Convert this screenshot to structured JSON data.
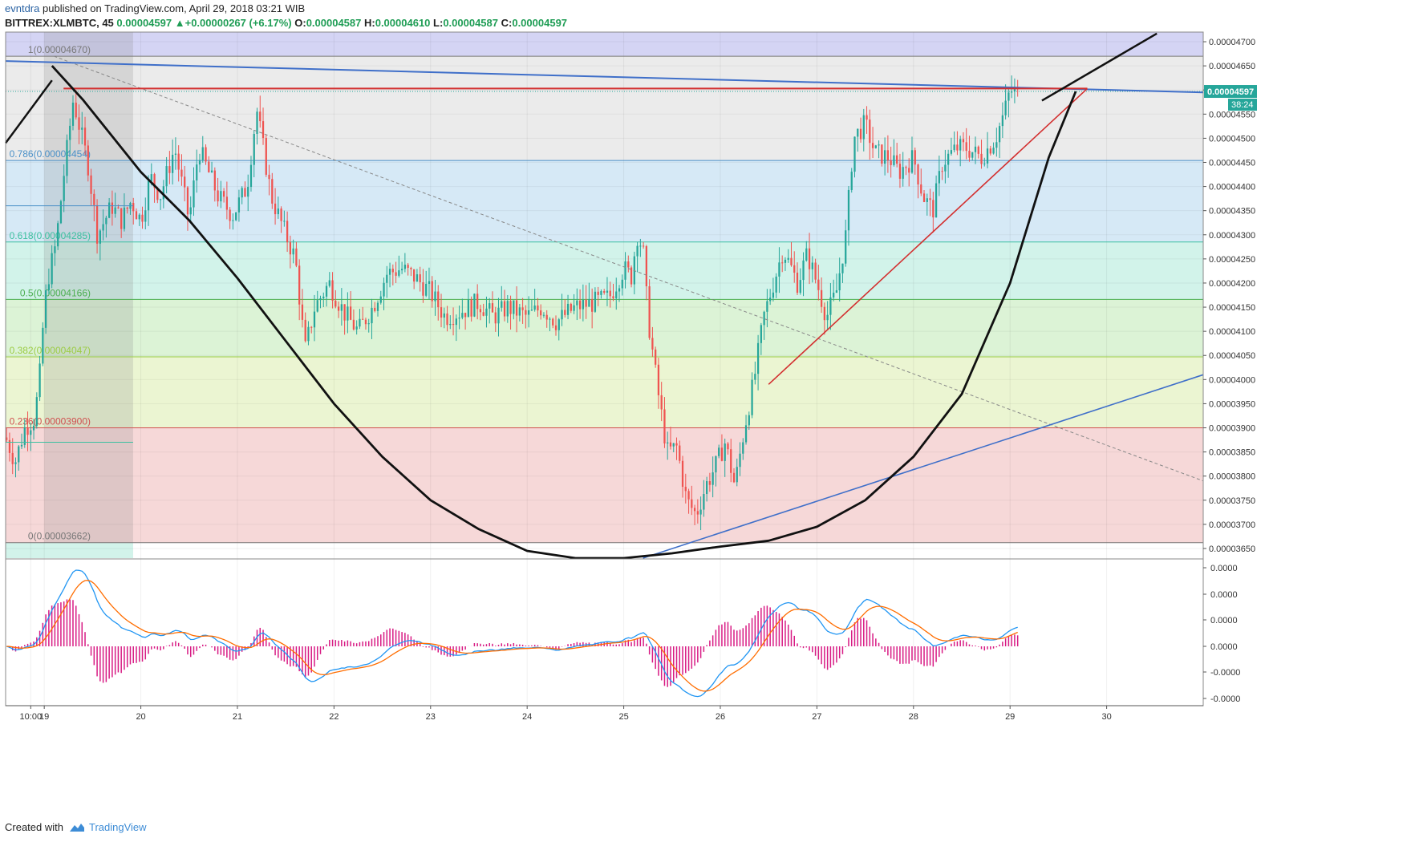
{
  "header": {
    "author": "evntdra",
    "published_text": "published on TradingView.com, April 29, 2018 03:21 WIB",
    "symbol": "BITTREX:XLMBTC, 45",
    "last": "0.00004597",
    "change": "+0.00000267 (+6.17%)",
    "o_label": "O:",
    "o_value": "0.00004587",
    "h_label": "H:",
    "h_value": "0.00004610",
    "l_label": "L:",
    "l_value": "0.00004587",
    "c_label": "C:",
    "c_value": "0.00004597",
    "up_arrow": "▲"
  },
  "footer": {
    "created_with": "Created with",
    "brand": "TradingView",
    "logo_icon": "tradingview-cloud-icon"
  },
  "chart_data": {
    "type": "candlestick",
    "price_axis": {
      "ylim": [
        3.63e-05,
        4.72e-05
      ],
      "ticks": [
        4.7e-05,
        4.65e-05,
        4.6e-05,
        4.55e-05,
        4.5e-05,
        4.45e-05,
        4.4e-05,
        4.35e-05,
        4.3e-05,
        4.25e-05,
        4.2e-05,
        4.15e-05,
        4.1e-05,
        4.05e-05,
        4e-05,
        3.95e-05,
        3.9e-05,
        3.85e-05,
        3.8e-05,
        3.75e-05,
        3.7e-05,
        3.65e-05
      ],
      "tick_labels": [
        "0.00004700",
        "0.00004650",
        "0.00004600",
        "0.00004550",
        "0.00004500",
        "0.00004450",
        "0.00004400",
        "0.00004350",
        "0.00004300",
        "0.00004250",
        "0.00004200",
        "0.00004150",
        "0.00004100",
        "0.00004050",
        "0.00004000",
        "0.00003950",
        "0.00003900",
        "0.00003850",
        "0.00003800",
        "0.00003750",
        "0.00003700",
        "0.00003650"
      ],
      "last_price_label": "0.00004597",
      "countdown_label": "38:24",
      "last_price": 4.597e-05
    },
    "time_axis": {
      "xlim": [
        18.6,
        31.0
      ],
      "ticks": [
        18.86,
        19,
        20,
        21,
        22,
        23,
        24,
        25,
        26,
        27,
        28,
        29,
        30
      ],
      "tick_labels": [
        "10:00",
        "19",
        "20",
        "21",
        "22",
        "23",
        "24",
        "25",
        "26",
        "27",
        "28",
        "29",
        "30"
      ]
    },
    "fibonacci": [
      {
        "ratio": 1,
        "label": "1(0.00004670)",
        "price": 4.67e-05,
        "color": "#787878",
        "fill": "#ebebeb"
      },
      {
        "ratio": 0.786,
        "label": "0.786(0.00004454)",
        "price": 4.454e-05,
        "color": "#4a90c8",
        "fill": "#d6e9f6"
      },
      {
        "ratio": 0.618,
        "label": "0.618(0.00004285)",
        "price": 4.285e-05,
        "color": "#3cc0a0",
        "fill": "#d2f3ea"
      },
      {
        "ratio": 0.5,
        "label": "0.5(0.00004166)",
        "price": 4.166e-05,
        "color": "#4caf50",
        "fill": "#dcf3d6"
      },
      {
        "ratio": 0.382,
        "label": "0.382(0.00004047)",
        "price": 4.047e-05,
        "color": "#9ccc45",
        "fill": "#ebf5d2"
      },
      {
        "ratio": 0.236,
        "label": "0.236(0.00003900)",
        "price": 3.9e-05,
        "color": "#d05050",
        "fill": "#f6d8d8"
      },
      {
        "ratio": 0,
        "label": "0(0.00003662)",
        "price": 3.662e-05,
        "color": "#787878",
        "fill": "#f6d8d8"
      }
    ],
    "top_band_fill": "#d4d4f4",
    "macd_axis": {
      "tick_labels": [
        "0.0000",
        "0.0000",
        "0.0000",
        "0.0000",
        "-0.0000",
        "-0.0000"
      ]
    },
    "colors": {
      "up": "#26a69a",
      "down": "#ef5350",
      "macd_line": "#2196f3",
      "signal_line": "#ff6d00",
      "histogram": "#d81b84"
    },
    "price_path": [
      [
        18.6,
        3.88e-05
      ],
      [
        18.7,
        3.83e-05
      ],
      [
        18.8,
        3.9e-05
      ],
      [
        18.9,
        3.92e-05
      ],
      [
        18.95,
        4e-05
      ],
      [
        19.0,
        4.15e-05
      ],
      [
        19.05,
        4.22e-05
      ],
      [
        19.12,
        4.28e-05
      ],
      [
        19.2,
        4.42e-05
      ],
      [
        19.3,
        4.58e-05
      ],
      [
        19.45,
        4.45e-05
      ],
      [
        19.55,
        4.3e-05
      ],
      [
        19.7,
        4.36e-05
      ],
      [
        19.8,
        4.33e-05
      ],
      [
        19.9,
        4.37e-05
      ],
      [
        20.0,
        4.33e-05
      ],
      [
        20.1,
        4.42e-05
      ],
      [
        20.2,
        4.38e-05
      ],
      [
        20.35,
        4.48e-05
      ],
      [
        20.5,
        4.33e-05
      ],
      [
        20.6,
        4.48e-05
      ],
      [
        20.8,
        4.38e-05
      ],
      [
        20.95,
        4.34e-05
      ],
      [
        21.1,
        4.4e-05
      ],
      [
        21.2,
        4.56e-05
      ],
      [
        21.35,
        4.38e-05
      ],
      [
        21.5,
        4.3e-05
      ],
      [
        21.6,
        4.25e-05
      ],
      [
        21.7,
        4.06e-05
      ],
      [
        21.8,
        4.15e-05
      ],
      [
        21.95,
        4.2e-05
      ],
      [
        22.1,
        4.14e-05
      ],
      [
        22.25,
        4.1e-05
      ],
      [
        22.4,
        4.15e-05
      ],
      [
        22.55,
        4.22e-05
      ],
      [
        22.7,
        4.23e-05
      ],
      [
        22.85,
        4.21e-05
      ],
      [
        23.0,
        4.18e-05
      ],
      [
        23.15,
        4.13e-05
      ],
      [
        23.3,
        4.14e-05
      ],
      [
        23.5,
        4.16e-05
      ],
      [
        23.65,
        4.13e-05
      ],
      [
        23.8,
        4.15e-05
      ],
      [
        24.0,
        4.13e-05
      ],
      [
        24.15,
        4.15e-05
      ],
      [
        24.3,
        4.12e-05
      ],
      [
        24.5,
        4.15e-05
      ],
      [
        24.7,
        4.16e-05
      ],
      [
        24.85,
        4.17e-05
      ],
      [
        25.0,
        4.23e-05
      ],
      [
        25.1,
        4.21e-05
      ],
      [
        25.12,
        4.31e-05
      ],
      [
        25.2,
        4.27e-05
      ],
      [
        25.25,
        4.13e-05
      ],
      [
        25.35,
        3.98e-05
      ],
      [
        25.45,
        3.85e-05
      ],
      [
        25.55,
        3.86e-05
      ],
      [
        25.65,
        3.75e-05
      ],
      [
        25.75,
        3.72e-05
      ],
      [
        25.85,
        3.78e-05
      ],
      [
        25.95,
        3.82e-05
      ],
      [
        26.05,
        3.87e-05
      ],
      [
        26.15,
        3.78e-05
      ],
      [
        26.25,
        3.9e-05
      ],
      [
        26.35,
        4e-05
      ],
      [
        26.45,
        4.13e-05
      ],
      [
        26.55,
        4.2e-05
      ],
      [
        26.65,
        4.27e-05
      ],
      [
        26.8,
        4.2e-05
      ],
      [
        26.9,
        4.26e-05
      ],
      [
        27.0,
        4.2e-05
      ],
      [
        27.1,
        4.13e-05
      ],
      [
        27.2,
        4.18e-05
      ],
      [
        27.3,
        4.3e-05
      ],
      [
        27.38,
        4.5e-05
      ],
      [
        27.5,
        4.53e-05
      ],
      [
        27.6,
        4.47e-05
      ],
      [
        27.75,
        4.46e-05
      ],
      [
        27.85,
        4.43e-05
      ],
      [
        28.0,
        4.46e-05
      ],
      [
        28.1,
        4.38e-05
      ],
      [
        28.2,
        4.35e-05
      ],
      [
        28.3,
        4.45e-05
      ],
      [
        28.45,
        4.48e-05
      ],
      [
        28.55,
        4.48e-05
      ],
      [
        28.7,
        4.46e-05
      ],
      [
        28.85,
        4.5e-05
      ],
      [
        28.95,
        4.56e-05
      ],
      [
        29.0,
        4.6e-05
      ],
      [
        29.1,
        4.59e-05
      ]
    ],
    "candle_step_days": 0.03125,
    "drawings": {
      "resistance_top": [
        [
          18.6,
          4.66e-05
        ],
        [
          31.0,
          4.595e-05
        ]
      ],
      "red_horizontal": [
        [
          19.2,
          4.603e-05
        ],
        [
          29.8,
          4.603e-05
        ]
      ],
      "red_support": [
        [
          26.5,
          3.99e-05
        ],
        [
          29.8,
          4.603e-05
        ]
      ],
      "blue_lower_support": [
        [
          25.2,
          3.63e-05
        ],
        [
          31.0,
          4.01e-05
        ]
      ],
      "dashed_diagonal": [
        [
          19.1,
          4.67e-05
        ],
        [
          31.0,
          3.79e-05
        ]
      ],
      "black_top_left_1": [
        [
          18.6,
          4.49e-05
        ],
        [
          19.08,
          4.62e-05
        ]
      ],
      "black_top_right": [
        [
          29.33,
          4.578e-05
        ],
        [
          30.52,
          4.717e-05
        ]
      ],
      "cup_left": [
        [
          19.08,
          4.65e-05
        ],
        [
          19.4,
          4.58e-05
        ],
        [
          20.0,
          4.43e-05
        ],
        [
          20.5,
          4.33e-05
        ],
        [
          21.0,
          4.21e-05
        ],
        [
          21.5,
          4.08e-05
        ],
        [
          22.0,
          3.95e-05
        ],
        [
          22.5,
          3.84e-05
        ],
        [
          23.0,
          3.75e-05
        ],
        [
          23.5,
          3.69e-05
        ],
        [
          24.0,
          3.645e-05
        ],
        [
          24.5,
          3.63e-05
        ],
        [
          25.0,
          3.63e-05
        ],
        [
          25.5,
          3.64e-05
        ],
        [
          26.0,
          3.654e-05
        ],
        [
          26.5,
          3.666e-05
        ],
        [
          27.0,
          3.695e-05
        ],
        [
          27.5,
          3.75e-05
        ],
        [
          28.0,
          3.84e-05
        ],
        [
          28.5,
          3.97e-05
        ],
        [
          29.0,
          4.2e-05
        ],
        [
          29.4,
          4.46e-05
        ],
        [
          29.68,
          4.597e-05
        ]
      ],
      "last_price_dotted": [
        [
          18.6,
          4.597e-05
        ],
        [
          31.0,
          4.597e-05
        ]
      ],
      "highlight_box": [
        [
          19.0,
          4.72e-05
        ],
        [
          19.92,
          3.63e-05
        ]
      ],
      "blue_support_small": [
        [
          18.6,
          4.36e-05
        ],
        [
          19.92,
          4.36e-05
        ]
      ],
      "teal_small": [
        [
          18.6,
          3.87e-05
        ],
        [
          19.92,
          3.87e-05
        ]
      ]
    }
  }
}
